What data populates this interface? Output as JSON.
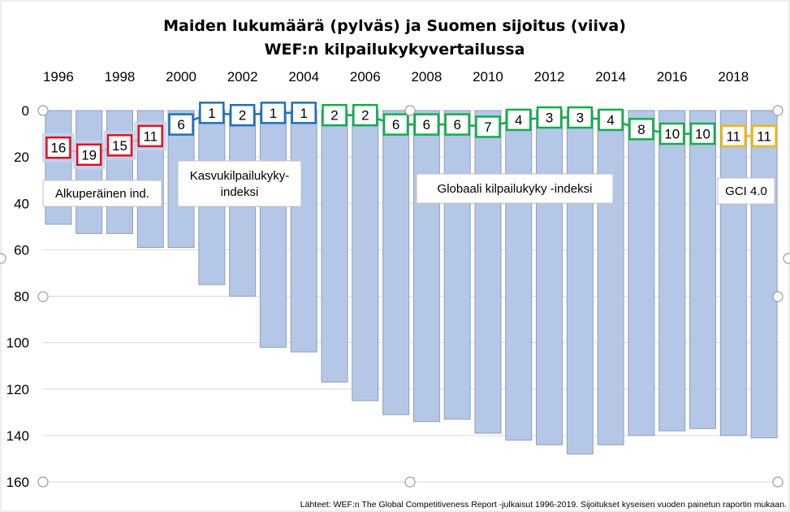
{
  "chart_data": {
    "type": "bar+line",
    "title_lines": [
      "Maiden lukumäärä (pylväs) ja Suomen sijoitus (viiva)",
      "WEF:n kilpailukykyvertailussa"
    ],
    "years": [
      1996,
      1997,
      1998,
      1999,
      2000,
      2001,
      2002,
      2003,
      2004,
      2005,
      2006,
      2007,
      2008,
      2009,
      2010,
      2011,
      2012,
      2013,
      2014,
      2015,
      2016,
      2017,
      2018,
      2019
    ],
    "year_tick_labels": [
      "1996",
      "1998",
      "2000",
      "2002",
      "2004",
      "2006",
      "2008",
      "2010",
      "2012",
      "2014",
      "2016",
      "2018"
    ],
    "y_axis": {
      "reversed": true,
      "ylim": [
        0,
        160
      ],
      "ticks": [
        "0",
        "20",
        "40",
        "60",
        "80",
        "100",
        "120",
        "140",
        "160"
      ],
      "tick_values": [
        0,
        20,
        40,
        60,
        80,
        100,
        120,
        140,
        160
      ],
      "grid": true
    },
    "series": [
      {
        "name": "Maiden lukumäärä",
        "kind": "bar",
        "color": "#b4c7e7",
        "values": [
          49,
          53,
          53,
          59,
          59,
          75,
          80,
          102,
          104,
          117,
          125,
          131,
          134,
          133,
          139,
          142,
          144,
          148,
          144,
          140,
          138,
          137,
          140,
          141
        ]
      },
      {
        "name": "Suomen sijoitus",
        "kind": "line",
        "values": [
          16,
          19,
          15,
          11,
          6,
          1,
          2,
          1,
          1,
          2,
          2,
          6,
          6,
          6,
          7,
          4,
          3,
          3,
          4,
          8,
          10,
          10,
          11,
          11
        ]
      }
    ],
    "index_groups": [
      {
        "label": "Alkuperäinen ind.",
        "color": "#e0101c",
        "from": 1996,
        "to": 1999
      },
      {
        "label": "Kasvukilpailukyky-\nindeksi",
        "color": "#1f6fb8",
        "from": 2000,
        "to": 2004
      },
      {
        "label": "Globaali kilpailukyky -indeksi",
        "color": "#0fae4a",
        "from": 2005,
        "to": 2017
      },
      {
        "label": "GCI 4.0",
        "color": "#f2b705",
        "from": 2018,
        "to": 2019
      }
    ],
    "source_note": "Lähteet: WEF:n The Global Competitiveness Report -julkaisut 1996-2019. Sijoitukset kyseisen vuoden painetun raportin mukaan."
  }
}
